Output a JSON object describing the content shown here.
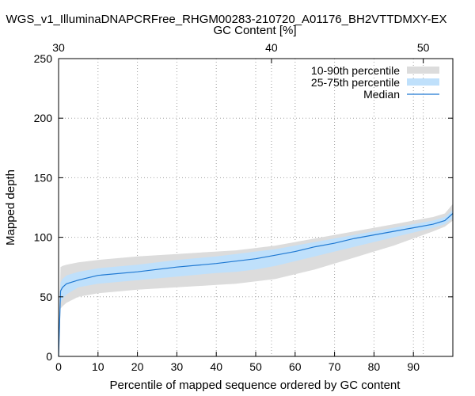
{
  "chart_data": {
    "type": "area",
    "title": "WGS_v1_IlluminaDNAPCRFree_RHGM00283-210720_A01176_BH2VTTDMXY-EX",
    "xlabel": "Percentile of mapped sequence ordered by GC content",
    "ylabel": "Mapped depth",
    "x2label": "GC Content [%]",
    "xlim": [
      0,
      100
    ],
    "ylim": [
      0,
      250
    ],
    "xticks": [
      0,
      10,
      20,
      30,
      40,
      50,
      60,
      70,
      80,
      90
    ],
    "yticks": [
      0,
      50,
      100,
      150,
      200,
      250
    ],
    "x2ticks": [
      {
        "label": "30",
        "at": 0
      },
      {
        "label": "40",
        "at": 54
      },
      {
        "label": "50",
        "at": 92.5
      }
    ],
    "grid": true,
    "legend_position": "top-right",
    "colors": {
      "p10_90": "#dcdcdc",
      "p25_75": "#bfe0fb",
      "median": "#1e78d2"
    },
    "legend": [
      {
        "key": "p10_90",
        "label": "10-90th percentile"
      },
      {
        "key": "p25_75",
        "label": "25-75th percentile"
      },
      {
        "key": "median",
        "label": "Median"
      }
    ],
    "x": [
      0,
      0.5,
      1,
      2,
      5,
      10,
      20,
      30,
      40,
      45,
      50,
      55,
      60,
      65,
      70,
      75,
      80,
      85,
      90,
      95,
      98,
      100
    ],
    "p10": [
      0,
      40,
      42,
      45,
      50,
      53,
      56,
      58,
      60,
      61,
      63,
      65,
      69,
      73,
      78,
      83,
      88,
      93,
      99,
      105,
      109,
      114
    ],
    "p25": [
      0,
      45,
      48,
      52,
      58,
      61,
      64,
      67,
      70,
      71,
      73,
      76,
      80,
      84,
      88,
      92,
      96,
      100,
      104,
      108,
      111,
      116
    ],
    "median": [
      0,
      55,
      58,
      61,
      64,
      68,
      71,
      75,
      78,
      80,
      82,
      85,
      88,
      92,
      95,
      99,
      102,
      105,
      108,
      111,
      114,
      120
    ],
    "p75": [
      0,
      62,
      65,
      68,
      71,
      74,
      77,
      81,
      84,
      86,
      88,
      90,
      93,
      96,
      99,
      102,
      105,
      108,
      111,
      114,
      117,
      123
    ],
    "p90": [
      0,
      75,
      76,
      77,
      79,
      81,
      84,
      86,
      88,
      89,
      91,
      93,
      96,
      99,
      102,
      105,
      108,
      111,
      114,
      117,
      120,
      128
    ]
  }
}
